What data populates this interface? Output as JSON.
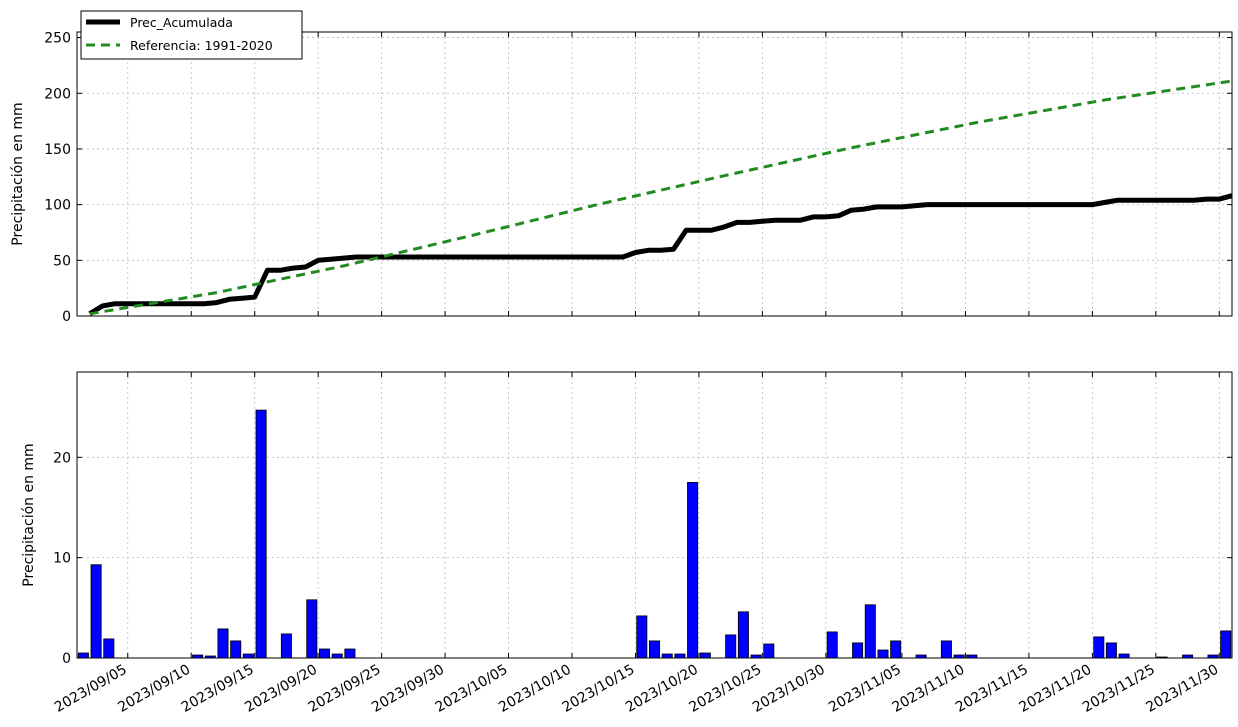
{
  "chart_data": [
    {
      "type": "line",
      "ylabel": "Precipitación en mm",
      "ylim": [
        0,
        255
      ],
      "yticks": [
        0,
        50,
        100,
        150,
        200,
        250
      ],
      "grid": true,
      "legend_position": "top-left",
      "series": [
        {
          "name": "Prec_Acumulada",
          "color": "#000000",
          "style": "solid",
          "x": [
            "2023-09-02",
            "2023-09-03",
            "2023-09-04",
            "2023-09-05",
            "2023-09-06",
            "2023-09-07",
            "2023-09-08",
            "2023-09-09",
            "2023-09-10",
            "2023-09-11",
            "2023-09-12",
            "2023-09-13",
            "2023-09-14",
            "2023-09-15",
            "2023-09-16",
            "2023-09-17",
            "2023-09-18",
            "2023-09-19",
            "2023-09-20",
            "2023-09-21",
            "2023-09-22",
            "2023-09-23",
            "2023-09-24",
            "2023-09-25",
            "2023-10-14",
            "2023-10-15",
            "2023-10-16",
            "2023-10-17",
            "2023-10-18",
            "2023-10-19",
            "2023-10-20",
            "2023-10-21",
            "2023-10-22",
            "2023-10-23",
            "2023-10-24",
            "2023-10-25",
            "2023-10-26",
            "2023-10-27",
            "2023-10-28",
            "2023-10-29",
            "2023-10-30",
            "2023-10-31",
            "2023-11-01",
            "2023-11-02",
            "2023-11-03",
            "2023-11-04",
            "2023-11-05",
            "2023-11-06",
            "2023-11-07",
            "2023-11-08",
            "2023-11-09",
            "2023-11-10",
            "2023-11-11",
            "2023-11-12",
            "2023-11-20",
            "2023-11-21",
            "2023-11-22",
            "2023-11-23",
            "2023-11-24",
            "2023-11-25",
            "2023-11-26",
            "2023-11-27",
            "2023-11-28",
            "2023-11-29",
            "2023-11-30",
            "2023-12-01"
          ],
          "values": [
            2,
            9,
            11,
            11,
            11,
            11,
            11,
            11,
            11,
            11,
            12,
            15,
            16,
            17,
            41,
            41,
            43,
            44,
            50,
            51,
            52,
            53,
            53,
            53,
            53,
            57,
            59,
            59,
            60,
            77,
            77,
            77,
            80,
            84,
            84,
            85,
            86,
            86,
            86,
            89,
            89,
            90,
            95,
            96,
            98,
            98,
            98,
            99,
            100,
            100,
            100,
            100,
            100,
            100,
            100,
            102,
            104,
            104,
            104,
            104,
            104,
            104,
            104,
            105,
            105,
            108
          ]
        },
        {
          "name": "Referencia: 1991-2020",
          "color": "#228b22",
          "style": "dashed",
          "x": [
            "2023-09-02",
            "2023-09-12",
            "2023-09-22",
            "2023-10-02",
            "2023-10-12",
            "2023-10-22",
            "2023-11-01",
            "2023-11-11",
            "2023-11-21",
            "2023-12-01"
          ],
          "values": [
            2,
            21,
            45,
            72,
            100,
            126,
            151,
            174,
            194,
            211
          ]
        }
      ]
    },
    {
      "type": "bar",
      "ylabel": "Precipitación en mm",
      "ylim": [
        0,
        28.5
      ],
      "yticks": [
        0,
        10,
        20
      ],
      "grid": true,
      "bar_color": "#0000ff",
      "x": [
        "2023-09-02",
        "2023-09-03",
        "2023-09-04",
        "2023-09-11",
        "2023-09-12",
        "2023-09-13",
        "2023-09-14",
        "2023-09-15",
        "2023-09-16",
        "2023-09-18",
        "2023-09-20",
        "2023-09-21",
        "2023-09-22",
        "2023-09-23",
        "2023-10-16",
        "2023-10-17",
        "2023-10-18",
        "2023-10-19",
        "2023-10-20",
        "2023-10-21",
        "2023-10-23",
        "2023-10-24",
        "2023-10-25",
        "2023-10-26",
        "2023-10-31",
        "2023-11-02",
        "2023-11-03",
        "2023-11-04",
        "2023-11-05",
        "2023-11-07",
        "2023-11-09",
        "2023-11-10",
        "2023-11-11",
        "2023-11-21",
        "2023-11-22",
        "2023-11-23",
        "2023-11-26",
        "2023-11-28",
        "2023-11-30",
        "2023-12-01"
      ],
      "values": [
        0.5,
        9.3,
        1.9,
        0.3,
        0.2,
        2.9,
        1.7,
        0.4,
        24.7,
        2.4,
        5.8,
        0.9,
        0.4,
        0.9,
        4.2,
        1.7,
        0.4,
        0.4,
        17.5,
        0.5,
        2.3,
        4.6,
        0.3,
        1.4,
        2.6,
        1.5,
        5.3,
        0.8,
        1.7,
        0.3,
        1.7,
        0.3,
        0.3,
        2.1,
        1.5,
        0.4,
        0.1,
        0.3,
        0.3,
        2.7
      ]
    }
  ],
  "x_axis": {
    "ticks": [
      "2023-09-05",
      "2023-09-10",
      "2023-09-15",
      "2023-09-20",
      "2023-09-25",
      "2023-09-30",
      "2023-10-05",
      "2023-10-10",
      "2023-10-15",
      "2023-10-20",
      "2023-10-25",
      "2023-10-30",
      "2023-11-05",
      "2023-11-10",
      "2023-11-15",
      "2023-11-20",
      "2023-11-25",
      "2023-11-30"
    ],
    "tick_labels": [
      "2023/09/05",
      "2023/09/10",
      "2023/09/15",
      "2023/09/20",
      "2023/09/25",
      "2023/09/30",
      "2023/10/05",
      "2023/10/10",
      "2023/10/15",
      "2023/10/20",
      "2023/10/25",
      "2023/10/30",
      "2023/11/05",
      "2023/11/10",
      "2023/11/15",
      "2023/11/20",
      "2023/11/25",
      "2023/11/30"
    ],
    "range": [
      "2023-09-01",
      "2023-12-01"
    ]
  }
}
